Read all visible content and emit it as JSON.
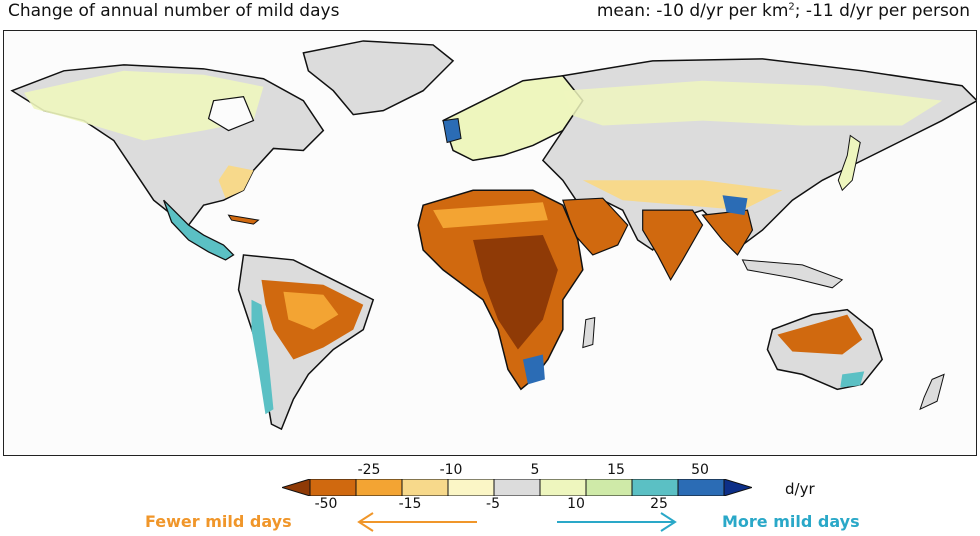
{
  "title": "Change of annual number of mild days",
  "mean": {
    "prefix": "mean: -10 d/yr per km",
    "sup": "2",
    "suffix": "; -11 d/yr per person"
  },
  "colorbar": {
    "top_labels": [
      "-25",
      "-10",
      "5",
      "15",
      "50"
    ],
    "bottom_labels": [
      "-50",
      "-15",
      "-5",
      "10",
      "25"
    ],
    "colors": [
      "#8f3a06",
      "#d0690f",
      "#f3a433",
      "#f7d98b",
      "#fbf6c6",
      "#dcdcdc",
      "#eef6be",
      "#cfeaa8",
      "#5bc0c4",
      "#2b6cb5",
      "#0d2f88"
    ],
    "unit": "d/yr"
  },
  "legend": {
    "fewer": "Fewer mild days",
    "more": "More mild days",
    "fewer_color": "#f0962a",
    "more_color": "#2aa8c8"
  }
}
